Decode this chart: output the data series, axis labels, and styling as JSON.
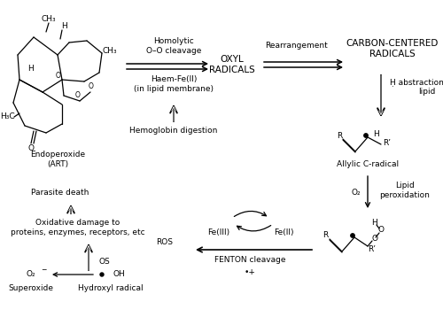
{
  "bg_color": "#ffffff",
  "text_color": "#000000",
  "labels": {
    "endoperoxide": "Endoperoxide\n(ART)",
    "homolytic": "Homolytic\nO–O cleavage",
    "haem": "Haem-Fe(II)\n(in lipid membrane)",
    "hemoglobin": "Hemoglobin digestion",
    "oxyl": "OXYL\nRADICALS",
    "rearrangement": "Rearrangement",
    "carbon_centered": "CARBON-CENTERED\nRADICALS",
    "h_abstraction": "Ḥ abstraction from\nlipid",
    "allylic": "Allylic C-radical",
    "o2": "O₂",
    "lipid_perox": "Lipid\nperoxidation",
    "parasite_death": "Parasite death",
    "oxidative_damage": "Oxidative damage to\nproteins, enzymes, receptors, etc",
    "os": "OS",
    "ros": "ROS",
    "superoxide": "Superoxide",
    "hydroxyl_radical": "Hydroxyl radical",
    "fe3": "Fe(III)",
    "fe2": "Fe(II)",
    "fenton": "FENTON cleavage",
    "bullet_plus": "•+",
    "ch3": "CH₃",
    "h3c": "H₃C",
    "h_label": "H",
    "r_label": "R",
    "rprime": "R’",
    "o_label": "O",
    "superscript_minus": "−"
  },
  "fs": 7.0,
  "sfs": 6.5
}
